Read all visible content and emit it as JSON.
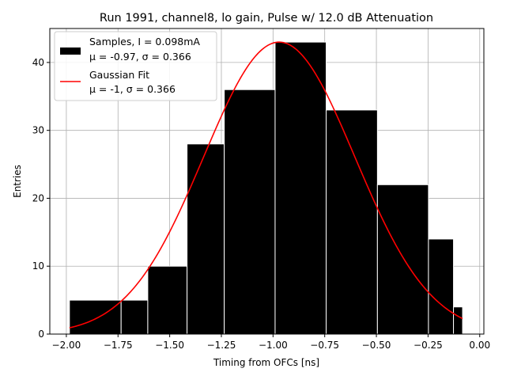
{
  "chart_data": {
    "type": "bar",
    "title": "Run 1991, channel8, lo gain, Pulse w/ 12.0 dB Attenuation",
    "xlabel": "Timing from OFCs [ns]",
    "ylabel": "Entries",
    "xlim": [
      -2.08,
      0.02
    ],
    "ylim": [
      0,
      45
    ],
    "xticks": [
      -2.0,
      -1.75,
      -1.5,
      -1.25,
      -1.0,
      -0.75,
      -0.5,
      -0.25,
      0.0
    ],
    "xtick_labels": [
      "−2.00",
      "−1.75",
      "−1.50",
      "−1.25",
      "−1.00",
      "−0.75",
      "−0.50",
      "−0.25",
      "0.00"
    ],
    "yticks": [
      0,
      10,
      20,
      30,
      40
    ],
    "ytick_labels": [
      "0",
      "10",
      "20",
      "30",
      "40"
    ],
    "grid": true,
    "legend_position": "top-left",
    "bins": [
      {
        "left": -1.985,
        "right": -1.735,
        "count": 5
      },
      {
        "left": -1.735,
        "right": -1.606,
        "count": 5
      },
      {
        "left": -1.606,
        "right": -1.416,
        "count": 10
      },
      {
        "left": -1.416,
        "right": -1.236,
        "count": 28
      },
      {
        "left": -1.236,
        "right": -0.99,
        "count": 36
      },
      {
        "left": -0.99,
        "right": -0.743,
        "count": 43
      },
      {
        "left": -0.743,
        "right": -0.495,
        "count": 33
      },
      {
        "left": -0.495,
        "right": -0.248,
        "count": 22
      },
      {
        "left": -0.248,
        "right": -0.127,
        "count": 14
      },
      {
        "left": -0.127,
        "right": -0.083,
        "count": 4
      }
    ],
    "series": [
      {
        "name": "Samples, I = 0.098mA",
        "name_line2": "μ = -0.97, σ = 0.366",
        "kind": "histogram",
        "color": "#000000"
      },
      {
        "name": "Gaussian Fit",
        "name_line2": "μ = -1, σ = 0.366",
        "kind": "line",
        "color": "#ff0000",
        "mu": -0.97,
        "sigma": 0.366,
        "amplitude": 43,
        "x_range": [
          -1.985,
          -0.083
        ]
      }
    ]
  }
}
